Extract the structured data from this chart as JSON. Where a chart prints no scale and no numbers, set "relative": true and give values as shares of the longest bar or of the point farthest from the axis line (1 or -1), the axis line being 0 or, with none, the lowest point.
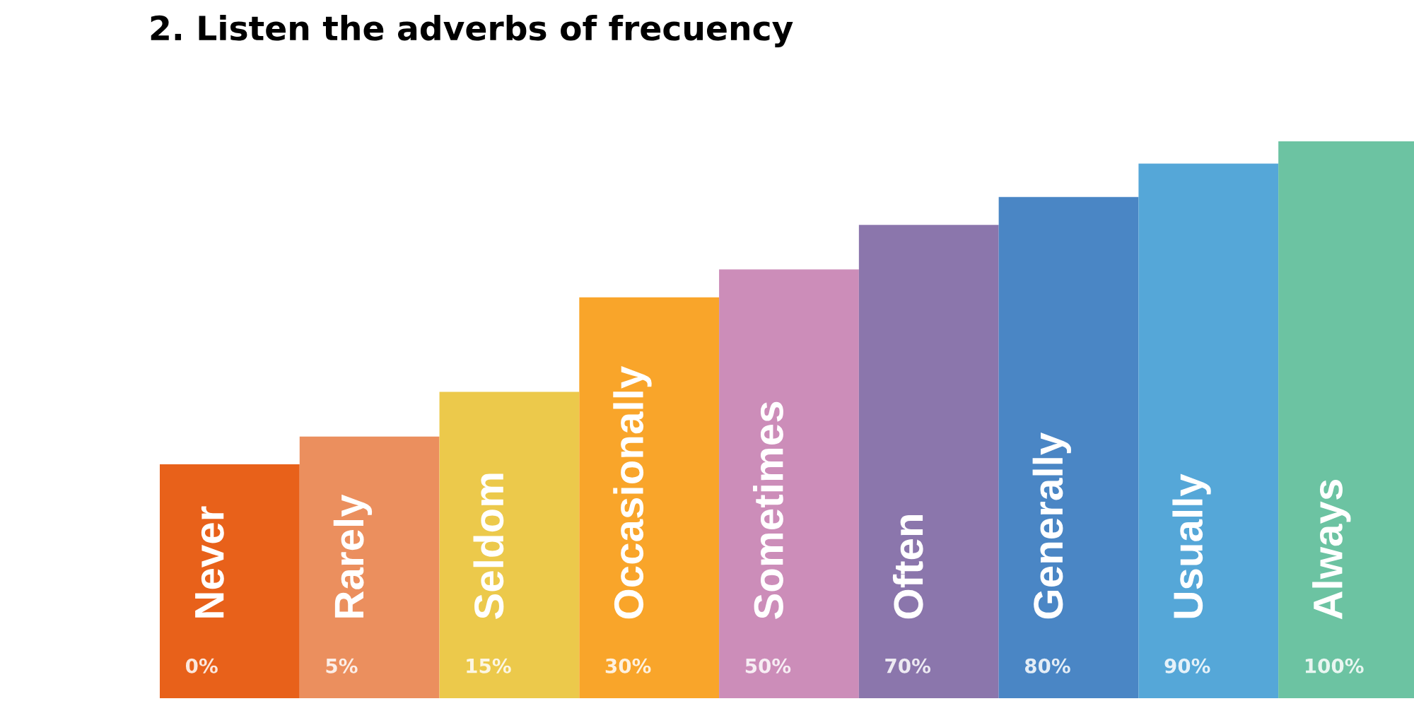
{
  "chart_data": {
    "type": "bar",
    "title": "2. Listen the adverbs of frecuency",
    "relative": true,
    "categories": [
      "Never",
      "Rarely",
      "Seldom",
      "Occasionally",
      "Sometimes",
      "Often",
      "Generally",
      "Usually",
      "Always"
    ],
    "values": [
      0.42,
      0.47,
      0.55,
      0.72,
      0.77,
      0.85,
      0.9,
      0.96,
      1
    ],
    "colors": [
      "#e8611a",
      "#eb8f5e",
      "#ecc94b",
      "#f9a52a",
      "#cc8db9",
      "#8b76ac",
      "#4a86c5",
      "#55a7d8",
      "#6cc3a2"
    ],
    "annotations": [
      "0%",
      "5%",
      "15%",
      "30%",
      "50%",
      "70%",
      "80%",
      "90%",
      "100%"
    ]
  }
}
